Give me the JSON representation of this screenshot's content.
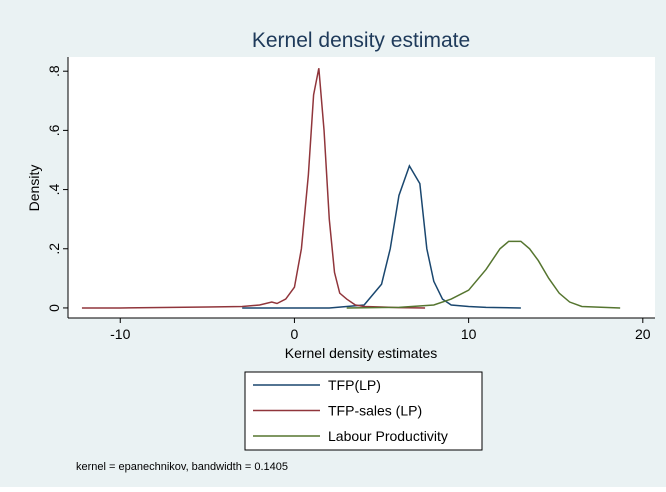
{
  "chart_data": {
    "type": "line",
    "title": "Kernel density estimate",
    "x_label": "Kernel density estimates",
    "y_label": "Density",
    "note": "kernel = epanechnikov, bandwidth = 0.1405",
    "xlim": [
      -13,
      20.7
    ],
    "ylim": [
      -0.034,
      0.848
    ],
    "xticks": [
      -10,
      0,
      10,
      20
    ],
    "yticks": [
      0,
      {
        "value": 0.2,
        "label": ".2"
      },
      {
        "value": 0.4,
        "label": ".4"
      },
      {
        "value": 0.6,
        "label": ".6"
      },
      {
        "value": 0.8,
        "label": ".8"
      }
    ],
    "grid": false,
    "series": [
      {
        "name": "TFP(LP)",
        "color": "#1a476f",
        "x": [
          -3,
          2,
          4,
          5,
          5.5,
          6,
          6.6,
          7.2,
          7.6,
          8,
          8.5,
          9,
          10,
          11,
          13
        ],
        "values": [
          0,
          0,
          0.01,
          0.08,
          0.2,
          0.38,
          0.48,
          0.42,
          0.2,
          0.09,
          0.03,
          0.01,
          0.005,
          0.002,
          0
        ]
      },
      {
        "name": "TFP-sales (LP)",
        "color": "#90353b",
        "x": [
          -12.2,
          -10,
          -5,
          -3,
          -2,
          -1.3,
          -1,
          -0.5,
          0,
          0.4,
          0.8,
          1.1,
          1.4,
          1.7,
          2,
          2.3,
          2.6,
          3,
          3.5,
          4,
          5,
          6,
          7.5
        ],
        "values": [
          0,
          0,
          0.003,
          0.005,
          0.01,
          0.02,
          0.015,
          0.03,
          0.07,
          0.2,
          0.45,
          0.72,
          0.81,
          0.6,
          0.3,
          0.12,
          0.05,
          0.03,
          0.01,
          0.005,
          0.003,
          0.001,
          0
        ]
      },
      {
        "name": "Labour Productivity",
        "color": "#55752f",
        "x": [
          3,
          6,
          8,
          9,
          10,
          11,
          11.8,
          12.3,
          13,
          13.5,
          14,
          14.6,
          15.2,
          15.8,
          16.5,
          18.7
        ],
        "values": [
          0,
          0.002,
          0.01,
          0.03,
          0.06,
          0.13,
          0.2,
          0.225,
          0.225,
          0.2,
          0.16,
          0.1,
          0.05,
          0.02,
          0.005,
          0
        ]
      }
    ]
  }
}
